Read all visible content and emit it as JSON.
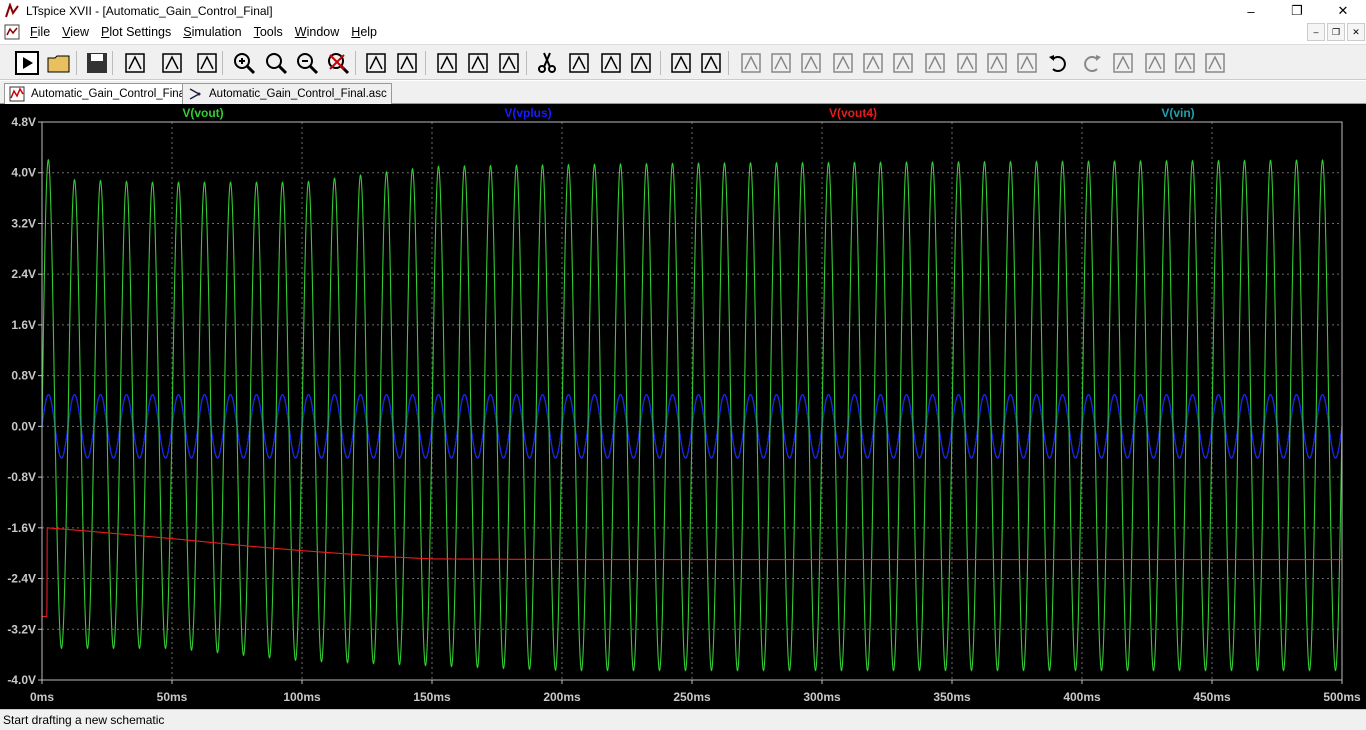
{
  "window": {
    "title": "LTspice XVII - [Automatic_Gain_Control_Final]",
    "controls": {
      "minimize": "–",
      "maximize": "❐",
      "close": "✕"
    }
  },
  "menu": [
    "File",
    "View",
    "Plot Settings",
    "Simulation",
    "Tools",
    "Window",
    "Help"
  ],
  "mdi_controls": [
    "–",
    "❐",
    "✕"
  ],
  "toolbar_icons": [
    "run-icon",
    "open-icon",
    "save-icon",
    "control-panel-icon",
    "run-man-icon",
    "halt-hand-icon",
    "zoom-in-icon",
    "zoom-area-icon",
    "zoom-out-icon",
    "zoom-cancel-icon",
    "autorange-icon",
    "waveform-add-icon",
    "tile-horizontal-icon",
    "cascade-icon",
    "tile-vertical-icon",
    "cut-icon",
    "copy-icon",
    "paste-icon",
    "find-icon",
    "print-icon",
    "print-preview-icon",
    "draw-wire-icon",
    "ground-icon",
    "label-net-icon",
    "resistor-icon",
    "capacitor-icon",
    "inductor-icon",
    "diode-icon",
    "component-icon",
    "move-icon",
    "drag-icon",
    "undo-icon",
    "redo-icon",
    "rotate-icon",
    "mirror-icon",
    "text-icon",
    "spice-directive-icon"
  ],
  "tabs": [
    {
      "label": "Automatic_Gain_Control_Final",
      "icon": "waveform-icon"
    },
    {
      "label": "Automatic_Gain_Control_Final.asc",
      "icon": "schematic-icon"
    }
  ],
  "status": "Start drafting a new schematic",
  "chart_data": {
    "type": "line",
    "xlabel": "",
    "ylabel": "",
    "x_unit": "ms",
    "y_unit": "V",
    "xlim": [
      0,
      500
    ],
    "ylim": [
      -4.0,
      4.8
    ],
    "x_ticks": [
      "0ms",
      "50ms",
      "100ms",
      "150ms",
      "200ms",
      "250ms",
      "300ms",
      "350ms",
      "400ms",
      "450ms",
      "500ms"
    ],
    "y_ticks": [
      "4.8V",
      "4.0V",
      "3.2V",
      "2.4V",
      "1.6V",
      "0.8V",
      "0.0V",
      "-0.8V",
      "-1.6V",
      "-2.4V",
      "-3.2V",
      "-4.0V"
    ],
    "grid": true,
    "background": "#000000",
    "grid_color": "#6b6b6b",
    "legend_placement": "top",
    "series": [
      {
        "name": "V(vout)",
        "color": "#33cc33",
        "shape": "sine",
        "frequency_hz": 100,
        "amplitude_points": [
          [
            0,
            4.5
          ],
          [
            5,
            3.9
          ],
          [
            40,
            3.85
          ],
          [
            100,
            3.85
          ],
          [
            150,
            4.1
          ],
          [
            250,
            4.15
          ],
          [
            500,
            4.2
          ]
        ],
        "min_points": [
          [
            0,
            -3.3
          ],
          [
            5,
            -3.5
          ],
          [
            50,
            -3.5
          ],
          [
            100,
            -3.7
          ],
          [
            200,
            -3.85
          ],
          [
            500,
            -3.85
          ]
        ]
      },
      {
        "name": "V(vplus)",
        "color": "#1a1aff",
        "shape": "sine",
        "frequency_hz": 100,
        "amplitude": 0.5
      },
      {
        "name": "V(vout4)",
        "color": "#e81c1c",
        "shape": "piecewise",
        "points": [
          [
            0,
            -3.0
          ],
          [
            1.9,
            -3.0
          ],
          [
            2,
            -1.6
          ],
          [
            20,
            -1.66
          ],
          [
            50,
            -1.77
          ],
          [
            80,
            -1.89
          ],
          [
            100,
            -1.96
          ],
          [
            130,
            -2.05
          ],
          [
            150,
            -2.09
          ],
          [
            200,
            -2.1
          ],
          [
            300,
            -2.1
          ],
          [
            400,
            -2.1
          ],
          [
            500,
            -2.1
          ]
        ]
      },
      {
        "name": "V(vin)",
        "color": "#20a0b0",
        "shape": "sine",
        "frequency_hz": 100,
        "amplitude": 0.5
      }
    ]
  }
}
